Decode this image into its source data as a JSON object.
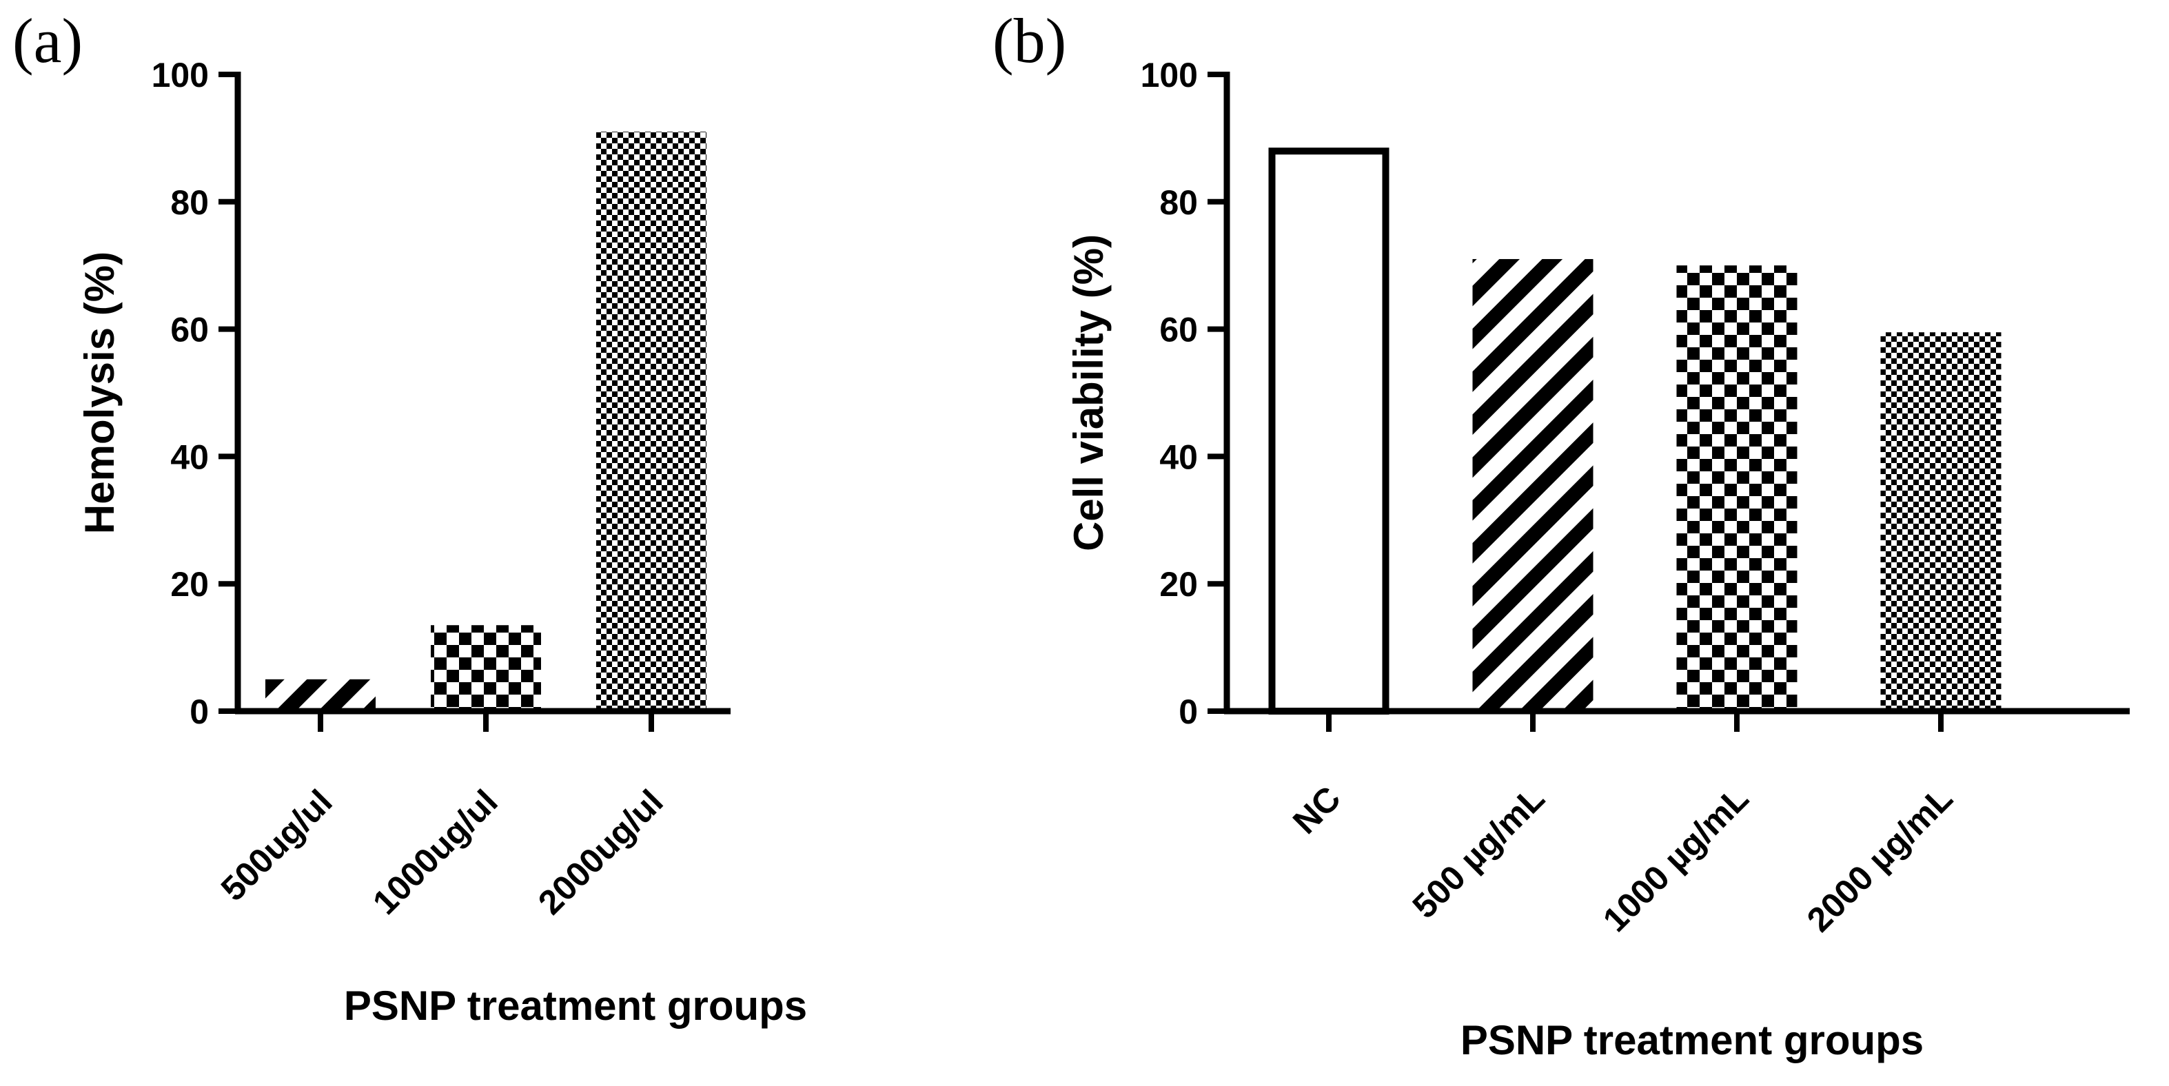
{
  "chart_data": [
    {
      "type": "bar",
      "panel_label": "(a)",
      "title": "",
      "xlabel": "PSNP treatment groups",
      "ylabel": "Hemolysis (%)",
      "ylim": [
        0,
        100
      ],
      "yticks": [
        "0",
        "20",
        "40",
        "60",
        "80",
        "100"
      ],
      "categories": [
        "500ug/ul",
        "1000ug/ul",
        "2000ug/ul"
      ],
      "values": [
        5,
        13.5,
        91
      ],
      "fills": [
        "diagonal-stripes",
        "checker-large",
        "checker-fine"
      ],
      "grid": false,
      "legend": "none"
    },
    {
      "type": "bar",
      "panel_label": "(b)",
      "title": "",
      "xlabel": "PSNP treatment groups",
      "ylabel": "Cell viability (%)",
      "ylim": [
        0,
        100
      ],
      "yticks": [
        "0",
        "20",
        "40",
        "60",
        "80",
        "100"
      ],
      "categories": [
        "NC",
        "500 µg/mL",
        "1000 µg/mL",
        "2000 µg/mL"
      ],
      "values": [
        88.5,
        71,
        70,
        59.5
      ],
      "fills": [
        "open",
        "diagonal-stripes",
        "checker-large",
        "checker-fine"
      ],
      "grid": false,
      "legend": "none"
    }
  ],
  "colors": {
    "ink": "#000000",
    "paper": "#ffffff"
  }
}
